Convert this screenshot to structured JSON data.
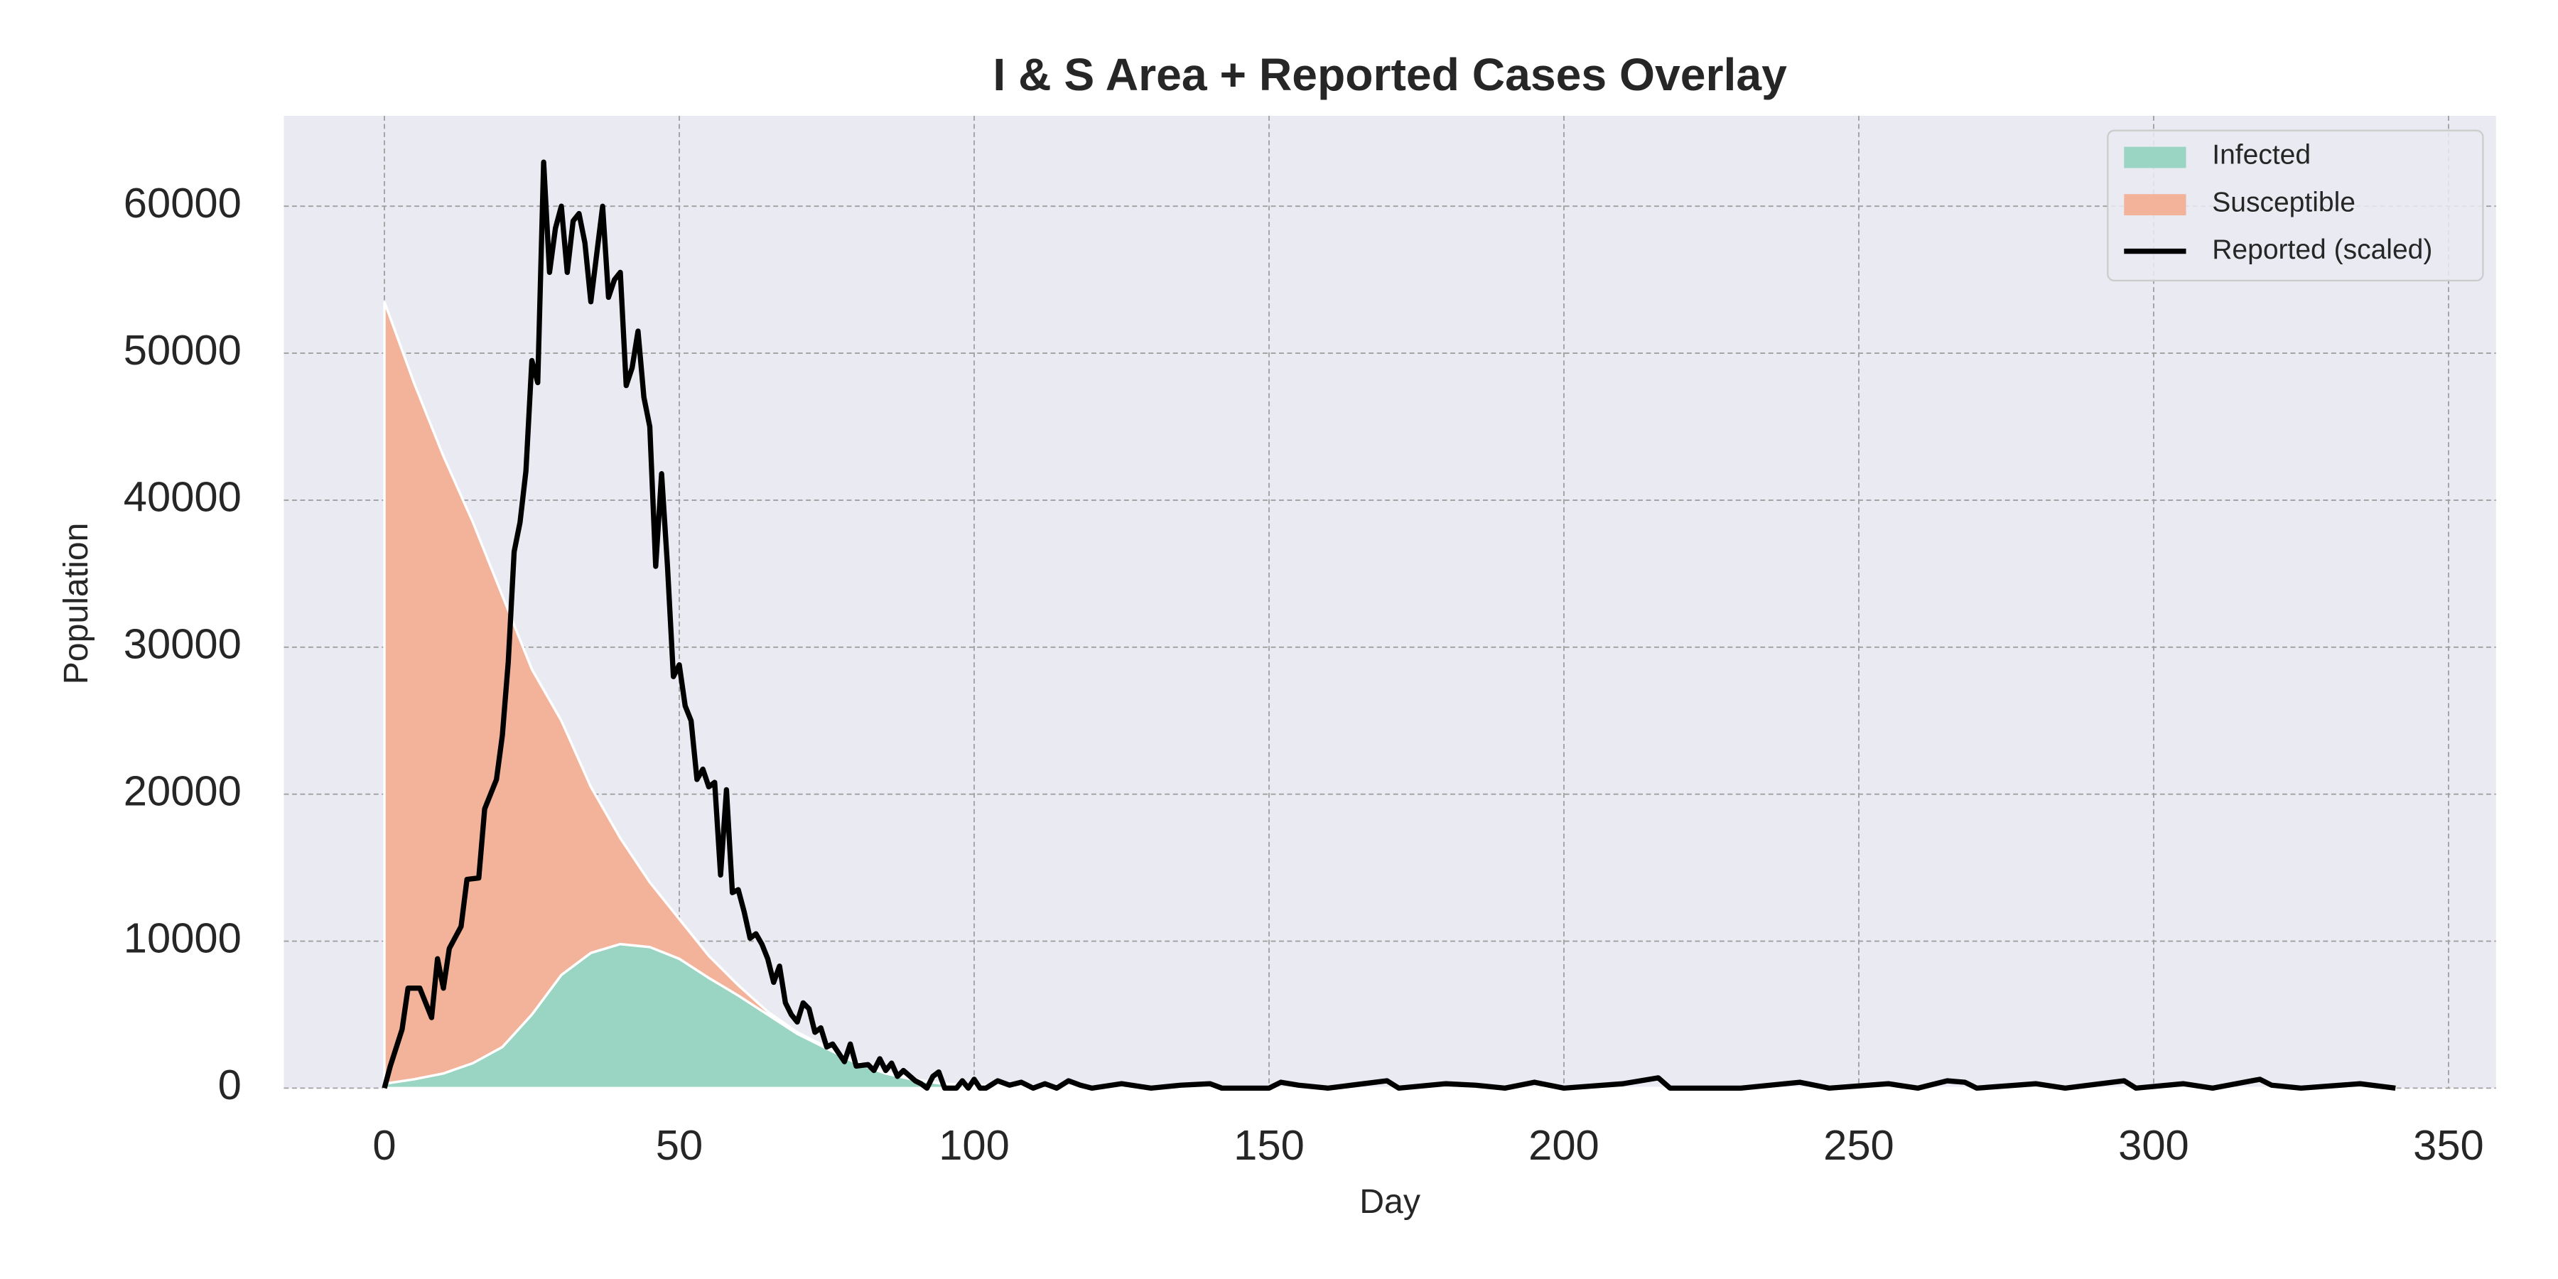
{
  "chart_data": {
    "type": "area",
    "stacked": true,
    "title": "I & S Area + Reported Cases Overlay",
    "xlabel": "Day",
    "ylabel": "Population",
    "x": [
      0,
      5,
      10,
      15,
      20,
      25,
      30,
      35,
      40,
      45,
      50,
      55,
      60,
      65,
      70,
      75,
      80,
      85,
      90,
      95,
      100,
      150,
      200,
      250,
      300,
      341
    ],
    "series": [
      {
        "name": "Infected",
        "type": "area",
        "color": "#9ad4c2",
        "values": [
          300,
          600,
          1000,
          1700,
          2800,
          5000,
          7700,
          9200,
          9800,
          9600,
          8800,
          7500,
          6300,
          5000,
          3700,
          2700,
          1700,
          1000,
          550,
          280,
          150,
          0,
          0,
          0,
          0,
          0
        ]
      },
      {
        "name": "Susceptible",
        "type": "area",
        "color": "#f3b39b",
        "values": [
          53200,
          47400,
          42000,
          36800,
          30700,
          23500,
          17300,
          11300,
          7200,
          4400,
          2700,
          1500,
          700,
          200,
          100,
          100,
          100,
          100,
          50,
          20,
          50,
          0,
          0,
          0,
          0,
          0
        ]
      },
      {
        "name": "Reported (scaled)",
        "type": "line",
        "color": "#000000",
        "x": [
          0,
          1,
          3,
          4,
          6,
          8,
          9,
          10,
          11,
          13,
          14,
          16,
          17,
          19,
          20,
          21,
          22,
          23,
          24,
          25,
          26,
          27,
          28,
          29,
          30,
          31,
          32,
          33,
          34,
          35,
          37,
          38,
          39,
          40,
          41,
          42,
          43,
          44,
          45,
          46,
          47,
          48,
          49,
          50,
          51,
          52,
          53,
          54,
          55,
          56,
          57,
          58,
          59,
          60,
          61,
          62,
          63,
          64,
          65,
          66,
          67,
          68,
          69,
          70,
          71,
          72,
          73,
          74,
          75,
          76,
          77,
          78,
          79,
          80,
          82,
          83,
          84,
          85,
          86,
          87,
          88,
          90,
          91,
          92,
          93,
          94,
          95,
          97,
          98,
          99,
          100,
          101,
          102,
          104,
          106,
          108,
          110,
          112,
          114,
          116,
          118,
          120,
          125,
          130,
          135,
          140,
          142,
          150,
          152,
          155,
          160,
          170,
          172,
          180,
          185,
          190,
          195,
          200,
          210,
          216,
          218,
          225,
          230,
          240,
          245,
          255,
          260,
          265,
          268,
          270,
          280,
          285,
          295,
          297,
          305,
          310,
          318,
          320,
          325,
          335,
          341
        ],
        "values": [
          0,
          1500,
          4000,
          6800,
          6800,
          4800,
          8800,
          6800,
          9500,
          11000,
          14200,
          14300,
          19000,
          21000,
          24000,
          29000,
          36500,
          38500,
          42000,
          49500,
          48000,
          63000,
          55500,
          58500,
          60000,
          55500,
          59000,
          59500,
          57500,
          53500,
          60000,
          53800,
          55000,
          55500,
          47800,
          49000,
          51500,
          47000,
          45000,
          35500,
          41800,
          35500,
          28000,
          28800,
          26000,
          25000,
          21000,
          21700,
          20500,
          20800,
          14500,
          20300,
          13300,
          13500,
          12000,
          10200,
          10500,
          9800,
          8800,
          7200,
          8300,
          5800,
          5000,
          4500,
          5800,
          5400,
          3800,
          4100,
          2800,
          3000,
          2400,
          1800,
          3000,
          1500,
          1600,
          1200,
          2000,
          1200,
          1700,
          800,
          1200,
          500,
          300,
          0,
          800,
          1100,
          0,
          0,
          500,
          0,
          600,
          0,
          0,
          500,
          200,
          400,
          0,
          300,
          0,
          500,
          200,
          0,
          300,
          0,
          200,
          300,
          0,
          0,
          400,
          200,
          0,
          500,
          0,
          300,
          200,
          0,
          400,
          0,
          300,
          700,
          0,
          0,
          0,
          400,
          0,
          300,
          0,
          500,
          400,
          0,
          300,
          0,
          500,
          0,
          300,
          0,
          600,
          200,
          0,
          300,
          0
        ]
      }
    ],
    "xlim": [
      -17.05,
      358.05
    ],
    "ylim": [
      0,
      66150
    ],
    "xticks": [
      0,
      50,
      100,
      150,
      200,
      250,
      300,
      350
    ],
    "yticks": [
      0,
      10000,
      20000,
      30000,
      40000,
      50000,
      60000
    ],
    "grid": true,
    "legend": "upper right"
  }
}
